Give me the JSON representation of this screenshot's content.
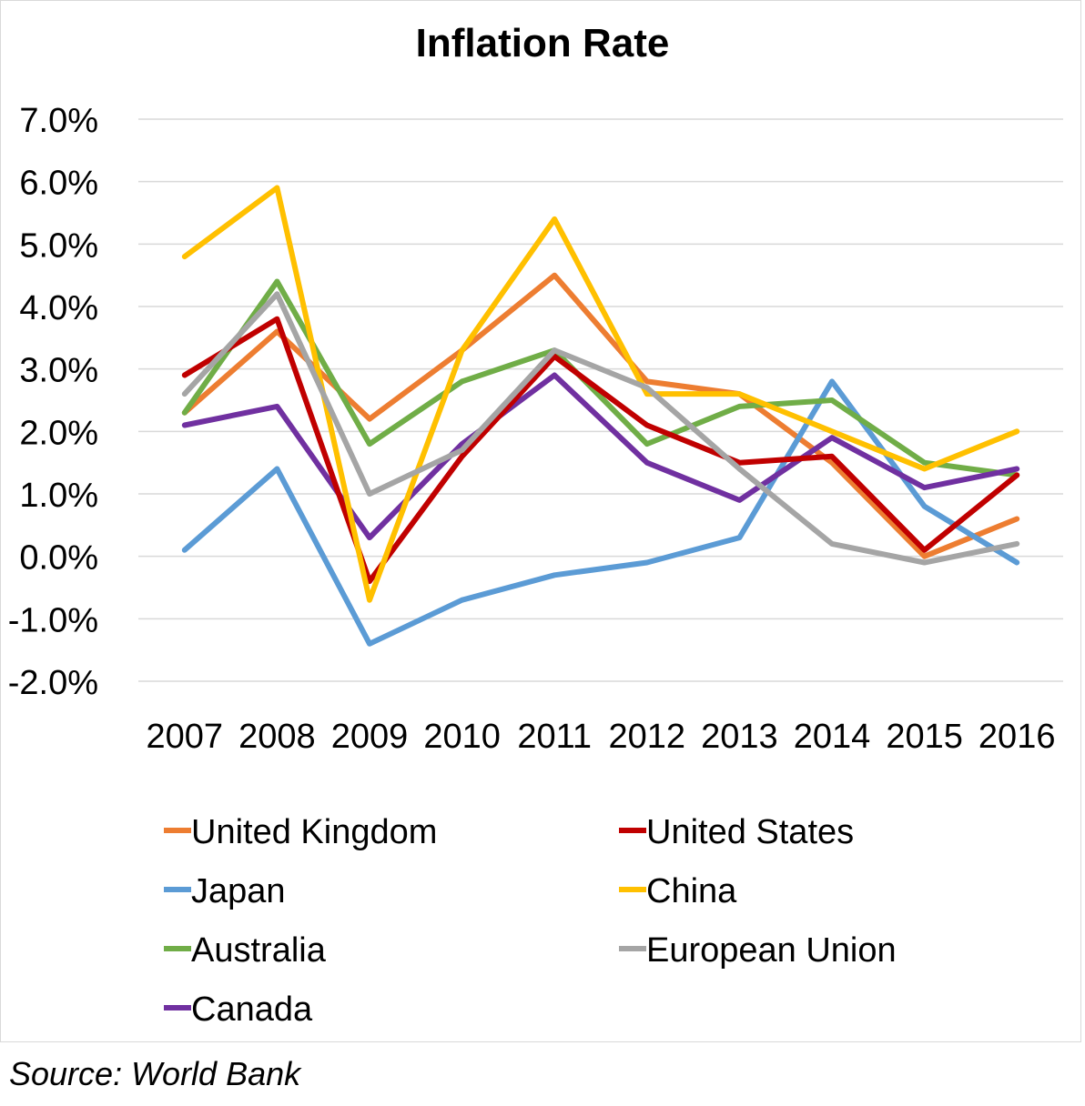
{
  "chart_data": {
    "type": "line",
    "title": "Inflation Rate",
    "xlabel": "",
    "ylabel": "",
    "ylim": [
      -2.0,
      7.0
    ],
    "y_ticks": [
      "7.0%",
      "6.0%",
      "5.0%",
      "4.0%",
      "3.0%",
      "2.0%",
      "1.0%",
      "0.0%",
      "-1.0%",
      "-2.0%"
    ],
    "y_tick_values": [
      7,
      6,
      5,
      4,
      3,
      2,
      1,
      0,
      -1,
      -2
    ],
    "x": [
      "2007",
      "2008",
      "2009",
      "2010",
      "2011",
      "2012",
      "2013",
      "2014",
      "2015",
      "2016"
    ],
    "grid": true,
    "legend_position": "bottom",
    "series": [
      {
        "name": "United Kingdom",
        "color": "#ED7D31",
        "values": [
          2.3,
          3.6,
          2.2,
          3.3,
          4.5,
          2.8,
          2.6,
          1.5,
          0.0,
          0.6
        ]
      },
      {
        "name": "Japan",
        "color": "#5B9BD5",
        "values": [
          0.1,
          1.4,
          -1.4,
          -0.7,
          -0.3,
          -0.1,
          0.3,
          2.8,
          0.8,
          -0.1
        ]
      },
      {
        "name": "Australia",
        "color": "#70AD47",
        "values": [
          2.3,
          4.4,
          1.8,
          2.8,
          3.3,
          1.8,
          2.4,
          2.5,
          1.5,
          1.3
        ]
      },
      {
        "name": "Canada",
        "color": "#7030A0",
        "values": [
          2.1,
          2.4,
          0.3,
          1.8,
          2.9,
          1.5,
          0.9,
          1.9,
          1.1,
          1.4
        ]
      },
      {
        "name": "United States",
        "color": "#C00000",
        "values": [
          2.9,
          3.8,
          -0.4,
          1.6,
          3.2,
          2.1,
          1.5,
          1.6,
          0.1,
          1.3
        ]
      },
      {
        "name": "China",
        "color": "#FFC000",
        "values": [
          4.8,
          5.9,
          -0.7,
          3.3,
          5.4,
          2.6,
          2.6,
          2.0,
          1.4,
          2.0
        ]
      },
      {
        "name": "European Union",
        "color": "#A5A5A5",
        "values": [
          2.6,
          4.2,
          1.0,
          1.7,
          3.3,
          2.7,
          1.4,
          0.2,
          -0.1,
          0.2
        ]
      }
    ]
  },
  "source": "Source: World Bank"
}
